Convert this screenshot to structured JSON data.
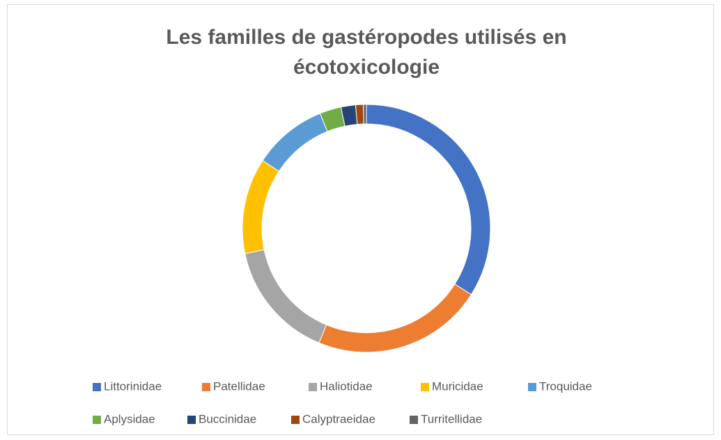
{
  "chart_data": {
    "type": "donut",
    "title_lines": [
      "Les familles de gastéropodes utilisés en",
      "écotoxicologie"
    ],
    "categories": [
      "Littorinidae",
      "Patellidae",
      "Haliotidae",
      "Muricidae",
      "Troquidae",
      "Aplysidae",
      "Buccinidae",
      "Calyptraeidae",
      "Turritellidae"
    ],
    "values": [
      34,
      22.3,
      15.5,
      12.5,
      9.7,
      2.8,
      1.9,
      1,
      0.4
    ],
    "colors": [
      "#4472c4",
      "#ed7d31",
      "#a5a5a5",
      "#ffc000",
      "#5b9bd5",
      "#70ad47",
      "#264478",
      "#9e480e",
      "#636363"
    ],
    "legend": "bottom"
  }
}
